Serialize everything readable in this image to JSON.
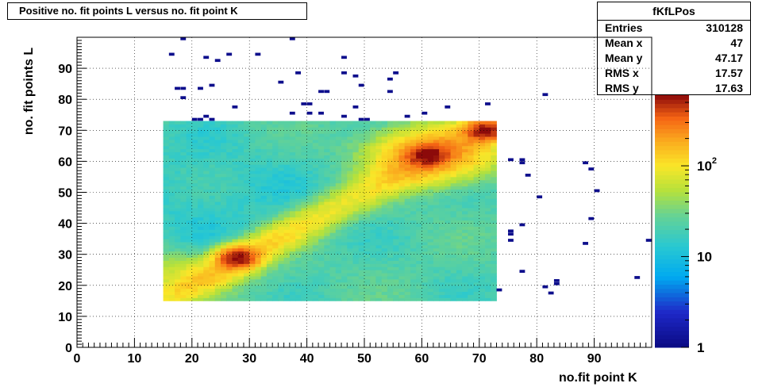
{
  "title": "Positive no. fit points L versus no. fit point K",
  "stats": {
    "name": "fKfLPos",
    "rows": [
      {
        "label": "Entries",
        "value": "310128"
      },
      {
        "label": "Mean x",
        "value": "47"
      },
      {
        "label": "Mean y",
        "value": "47.17"
      },
      {
        "label": "RMS x",
        "value": "17.57"
      },
      {
        "label": "RMS y",
        "value": "17.63"
      }
    ]
  },
  "chart_data": {
    "type": "heatmap",
    "xlabel": "no.fit point K",
    "ylabel": "no. fit points  L",
    "xlim": [
      0,
      100
    ],
    "ylim": [
      0,
      100
    ],
    "xticks": [
      "0",
      "10",
      "20",
      "30",
      "40",
      "50",
      "60",
      "70",
      "80",
      "90"
    ],
    "yticks": [
      "0",
      "10",
      "20",
      "30",
      "40",
      "50",
      "60",
      "70",
      "80",
      "90"
    ],
    "z_scale": "log",
    "zlim": [
      1,
      600
    ],
    "zticks": [
      {
        "value": 1,
        "label": "1"
      },
      {
        "value": 10,
        "label": "10"
      },
      {
        "value": 100,
        "label": "10",
        "exponent": "2"
      }
    ],
    "grid": true,
    "dense_region": {
      "x": [
        15,
        73
      ],
      "y": [
        15,
        73
      ]
    },
    "peaks": [
      {
        "x": 28,
        "y": 29,
        "value": 500
      },
      {
        "x": 61,
        "y": 62,
        "value": 450
      },
      {
        "x": 71,
        "y": 70,
        "value": 500
      }
    ],
    "sparse_bins": [
      [
        18,
        99
      ],
      [
        37,
        99
      ],
      [
        16,
        94
      ],
      [
        26,
        94
      ],
      [
        31,
        94
      ],
      [
        22,
        93
      ],
      [
        24,
        92
      ],
      [
        46,
        93
      ],
      [
        38,
        88
      ],
      [
        46,
        88
      ],
      [
        48,
        87
      ],
      [
        55,
        88
      ],
      [
        54,
        86
      ],
      [
        35,
        85
      ],
      [
        23,
        84
      ],
      [
        49,
        84
      ],
      [
        17,
        83
      ],
      [
        18,
        83
      ],
      [
        21,
        83
      ],
      [
        42,
        82
      ],
      [
        43,
        82
      ],
      [
        54,
        82
      ],
      [
        18,
        80
      ],
      [
        81,
        81
      ],
      [
        39,
        78
      ],
      [
        40,
        78
      ],
      [
        71,
        78
      ],
      [
        27,
        77
      ],
      [
        48,
        77
      ],
      [
        64,
        77
      ],
      [
        37,
        75
      ],
      [
        40,
        75
      ],
      [
        42,
        75
      ],
      [
        46,
        74
      ],
      [
        60,
        75
      ],
      [
        57,
        74
      ],
      [
        20,
        73
      ],
      [
        21,
        73
      ],
      [
        23,
        73
      ],
      [
        22,
        74
      ],
      [
        49,
        73
      ],
      [
        50,
        73
      ],
      [
        73,
        18
      ],
      [
        75,
        60
      ],
      [
        77,
        60
      ],
      [
        77,
        59
      ],
      [
        78,
        55
      ],
      [
        80,
        48
      ],
      [
        88,
        59
      ],
      [
        89,
        57
      ],
      [
        90,
        50
      ],
      [
        75,
        37
      ],
      [
        75,
        36
      ],
      [
        75,
        34
      ],
      [
        77,
        39
      ],
      [
        89,
        41
      ],
      [
        88,
        33
      ],
      [
        77,
        24
      ],
      [
        81,
        19
      ],
      [
        82,
        17
      ],
      [
        83,
        21
      ],
      [
        83,
        20
      ],
      [
        97,
        22
      ],
      [
        99,
        34
      ]
    ]
  }
}
